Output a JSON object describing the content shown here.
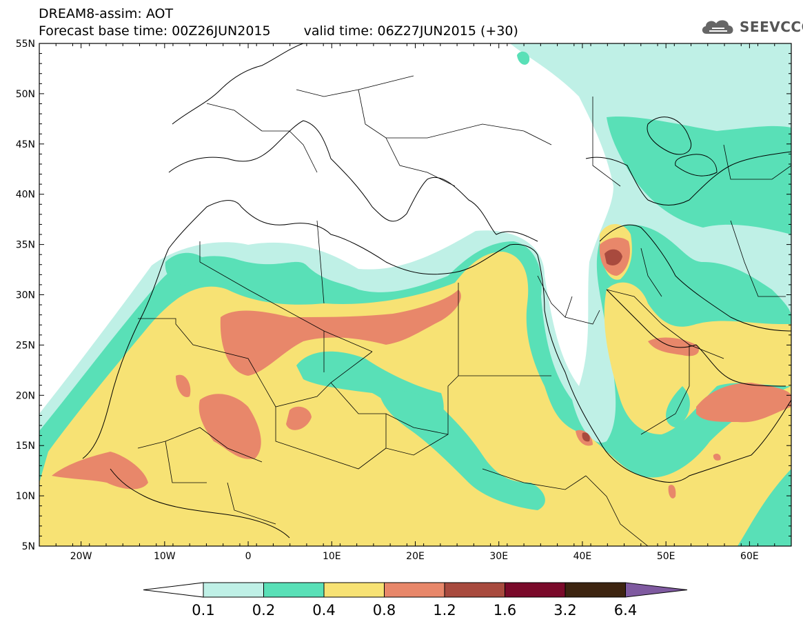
{
  "title": "DREAM8-assim: AOT",
  "base_time": "Forecast base time: 00Z26JUN2015",
  "valid_time": "valid time: 06Z27JUN2015 (+30)",
  "logo": "SEEVCCC",
  "map": {
    "lat_range": [
      5,
      55
    ],
    "lon_range": [
      -25,
      65
    ],
    "lat_labels": [
      "55N",
      "50N",
      "45N",
      "40N",
      "35N",
      "30N",
      "25N",
      "20N",
      "15N",
      "10N",
      "5N"
    ],
    "lon_labels": [
      "20W",
      "10W",
      "0",
      "10E",
      "20E",
      "30E",
      "40E",
      "50E",
      "60E"
    ]
  },
  "colorbar": {
    "levels": [
      "0.1",
      "0.2",
      "0.4",
      "0.8",
      "1.2",
      "1.6",
      "3.2",
      "6.4"
    ],
    "colors": [
      "#ffffff",
      "#bff0e6",
      "#59e0b7",
      "#f7e274",
      "#e8876a",
      "#a84a3e",
      "#7a0a2a",
      "#3d2410",
      "#7f5aa0"
    ]
  },
  "colors": {
    "c01": "#bff0e6",
    "c02": "#59e0b7",
    "c04": "#f7e274",
    "c08": "#e8876a",
    "c12": "#a84a3e",
    "c16": "#7a0a2a",
    "c32": "#3d2410",
    "c64": "#7f5aa0"
  }
}
